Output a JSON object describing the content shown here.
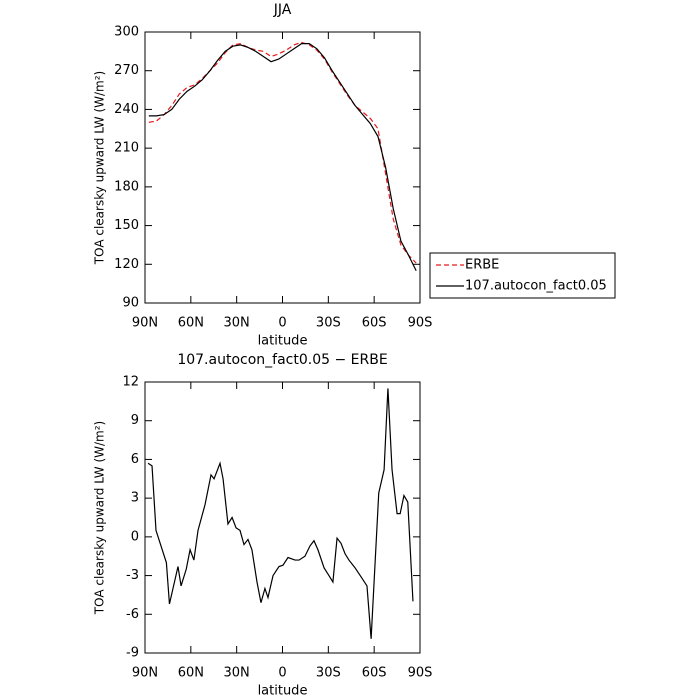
{
  "chart_data": [
    {
      "type": "line",
      "title": "JJA",
      "xlabel": "latitude",
      "ylabel": "TOA clearsky upward LW (W/m²)",
      "x": [
        87.5,
        82.5,
        77.5,
        72.5,
        67.5,
        62.5,
        57.5,
        52.5,
        47.5,
        42.5,
        37.5,
        32.5,
        27.5,
        22.5,
        17.5,
        12.5,
        7.5,
        2.5,
        -2.5,
        -7.5,
        -12.5,
        -17.5,
        -22.5,
        -27.5,
        -32.5,
        -37.5,
        -42.5,
        -47.5,
        -52.5,
        -57.5,
        -62.5,
        -67.5,
        -72.5,
        -77.5,
        -82.5,
        -87.5
      ],
      "series": [
        {
          "name": "ERBE",
          "color": "#e41a1c",
          "dash": true,
          "values": [
            230,
            231,
            236,
            243,
            252,
            257,
            259,
            264,
            270,
            276,
            284,
            290,
            291,
            288,
            286,
            285,
            281,
            283,
            286,
            290,
            292,
            290,
            286,
            279,
            269,
            260,
            251,
            243,
            238,
            233,
            225,
            190,
            155,
            135,
            127,
            121
          ]
        },
        {
          "name": "107.autocon_fact0.05",
          "color": "#000000",
          "dash": false,
          "values": [
            235,
            235,
            236,
            240,
            248,
            254,
            258,
            263,
            270,
            278,
            285,
            289,
            290,
            288,
            285,
            281,
            277,
            279,
            283,
            287,
            291,
            291,
            287,
            280,
            270,
            261,
            252,
            243,
            236,
            229,
            219,
            195,
            163,
            138,
            127,
            115
          ]
        }
      ],
      "xlim": [
        90,
        -90
      ],
      "xticks": [
        {
          "value": 90,
          "label": "90N"
        },
        {
          "value": 60,
          "label": "60N"
        },
        {
          "value": 30,
          "label": "30N"
        },
        0,
        {
          "value": -30,
          "label": "30S"
        },
        {
          "value": -60,
          "label": "60S"
        },
        {
          "value": -90,
          "label": "90S"
        }
      ],
      "ylim": [
        90,
        300
      ],
      "yticks": [
        90,
        120,
        150,
        180,
        210,
        240,
        270,
        300
      ],
      "legend": "right"
    },
    {
      "type": "line",
      "title": "107.autocon_fact0.05 − ERBE",
      "xlabel": "latitude",
      "ylabel": "TOA clearsky upward LW (W/m²)",
      "x": [
        88,
        85.4,
        82.8,
        76,
        74,
        68.4,
        66.4,
        63,
        60.5,
        58,
        55.3,
        50.7,
        46.8,
        44.8,
        40.9,
        38.9,
        35.7,
        33,
        30.4,
        27.8,
        25.2,
        22.6,
        20,
        16.7,
        14.1,
        11.5,
        9.5,
        6.2,
        2.3,
        -0.3,
        -3.6,
        -8.2,
        -10.8,
        -14.7,
        -18,
        -20.6,
        -23.2,
        -27.2,
        -30.4,
        -33,
        -35.7,
        -38.3,
        -40.9,
        -43.5,
        -47.5,
        -52,
        -55.3,
        -58,
        -63,
        -66.5,
        -69,
        -71.7,
        -75,
        -77,
        -79.5,
        -82,
        -85.4
      ],
      "series": [
        {
          "name": "107.autocon_fact0.05 − ERBE",
          "color": "#000000",
          "dash": false,
          "values": [
            5.7,
            5.5,
            0.5,
            -2,
            -5.2,
            -2.3,
            -3.8,
            -2.5,
            -1,
            -1.8,
            0.5,
            2.5,
            4.8,
            4.5,
            5.7,
            4.5,
            1,
            1.5,
            0.7,
            0.5,
            -0.6,
            -0.2,
            -1,
            -3.5,
            -5.1,
            -4,
            -4.7,
            -3,
            -2.3,
            -2.2,
            -1.6,
            -1.8,
            -1.8,
            -1.5,
            -0.7,
            -0.3,
            -1,
            -2.4,
            -3,
            -3.5,
            -0.1,
            -0.5,
            -1.3,
            -1.8,
            -2.4,
            -3.2,
            -3.8,
            -7.9,
            3.4,
            5.2,
            11.5,
            5.2,
            1.8,
            1.8,
            3.2,
            2.7,
            -5
          ]
        }
      ],
      "xlim": [
        90,
        -90
      ],
      "xticks": [
        {
          "value": 90,
          "label": "90N"
        },
        {
          "value": 60,
          "label": "60N"
        },
        {
          "value": 30,
          "label": "30N"
        },
        0,
        {
          "value": -30,
          "label": "30S"
        },
        {
          "value": -60,
          "label": "60S"
        },
        {
          "value": -90,
          "label": "90S"
        }
      ],
      "ylim": [
        -9,
        12
      ],
      "yticks": [
        -9,
        -6,
        -3,
        0,
        3,
        6,
        9,
        12
      ]
    }
  ]
}
